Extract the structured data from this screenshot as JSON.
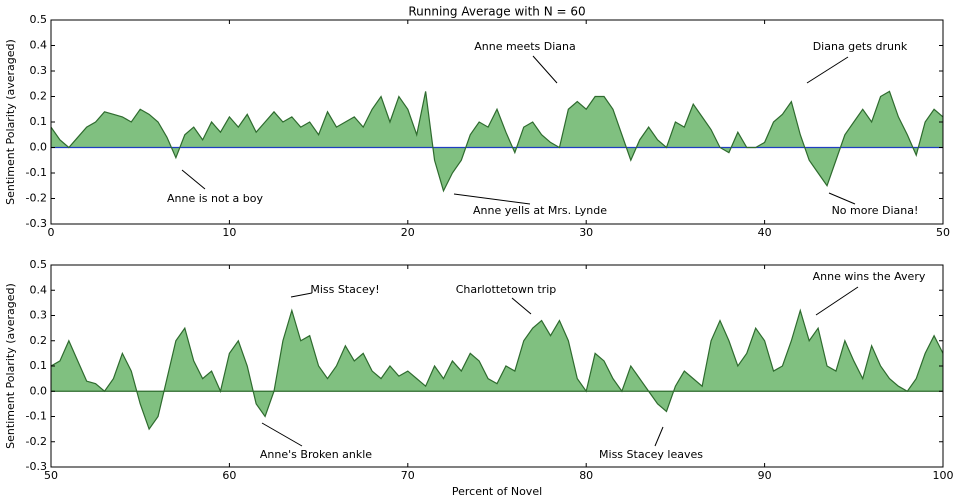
{
  "chart_data": [
    {
      "type": "area",
      "title": "Running Average with N = 60",
      "ylabel": "Sentiment Polarity (averaged)",
      "x": [
        0,
        0.5,
        1,
        1.5,
        2,
        2.5,
        3,
        3.5,
        4,
        4.5,
        5,
        5.5,
        6,
        6.5,
        7,
        7.5,
        8,
        8.5,
        9,
        9.5,
        10,
        10.5,
        11,
        11.5,
        12,
        12.5,
        13,
        13.5,
        14,
        14.5,
        15,
        15.5,
        16,
        16.5,
        17,
        17.5,
        18,
        18.5,
        19,
        19.5,
        20,
        20.5,
        21,
        21.5,
        22,
        22.5,
        23,
        23.5,
        24,
        24.5,
        25,
        25.5,
        26,
        26.5,
        27,
        27.5,
        28,
        28.5,
        29,
        29.5,
        30,
        30.5,
        31,
        31.5,
        32,
        32.5,
        33,
        33.5,
        34,
        34.5,
        35,
        35.5,
        36,
        36.5,
        37,
        37.5,
        38,
        38.5,
        39,
        39.5,
        40,
        40.5,
        41,
        41.5,
        42,
        42.5,
        43,
        43.5,
        44,
        44.5,
        45,
        45.5,
        46,
        46.5,
        47,
        47.5,
        48,
        48.5,
        49,
        49.5,
        50
      ],
      "series": [
        {
          "color": "#2e6b2e",
          "fill": "#80c080",
          "values": [
            0.08,
            0.03,
            0.0,
            0.04,
            0.08,
            0.1,
            0.14,
            0.13,
            0.12,
            0.1,
            0.15,
            0.13,
            0.1,
            0.04,
            -0.04,
            0.05,
            0.08,
            0.03,
            0.1,
            0.06,
            0.12,
            0.08,
            0.13,
            0.06,
            0.1,
            0.14,
            0.1,
            0.12,
            0.08,
            0.1,
            0.05,
            0.14,
            0.08,
            0.1,
            0.12,
            0.08,
            0.15,
            0.2,
            0.1,
            0.2,
            0.15,
            0.05,
            0.22,
            -0.05,
            -0.17,
            -0.1,
            -0.05,
            0.05,
            0.1,
            0.08,
            0.15,
            0.06,
            -0.02,
            0.08,
            0.1,
            0.05,
            0.02,
            0.0,
            0.15,
            0.18,
            0.15,
            0.2,
            0.2,
            0.15,
            0.05,
            -0.05,
            0.03,
            0.08,
            0.03,
            0.0,
            0.1,
            0.08,
            0.17,
            0.12,
            0.07,
            0.0,
            -0.02,
            0.06,
            0.0,
            0.0,
            0.02,
            0.1,
            0.13,
            0.18,
            0.05,
            -0.05,
            -0.1,
            -0.15,
            -0.05,
            0.05,
            0.1,
            0.15,
            0.1,
            0.2,
            0.22,
            0.12,
            0.05,
            -0.03,
            0.1,
            0.15,
            0.12
          ]
        }
      ],
      "zero_line_color": "#1f3fbf",
      "xlim": [
        0,
        50
      ],
      "ylim": [
        -0.3,
        0.5
      ],
      "xticks": [
        0,
        10,
        20,
        30,
        40,
        50
      ],
      "yticks": [
        -0.3,
        -0.2,
        -0.1,
        {
          "value": 0,
          "label": "0.0"
        },
        0.1,
        0.2,
        0.3,
        0.4,
        0.5
      ],
      "annotations": [
        "Anne is not a boy",
        "Anne meets Diana",
        "Anne yells at Mrs. Lynde",
        "Diana gets drunk",
        "No more Diana!"
      ]
    },
    {
      "type": "area",
      "ylabel": "Sentiment Polarity (averaged)",
      "xlabel": "Percent of Novel",
      "x": [
        50,
        50.5,
        51,
        51.5,
        52,
        52.5,
        53,
        53.5,
        54,
        54.5,
        55,
        55.5,
        56,
        56.5,
        57,
        57.5,
        58,
        58.5,
        59,
        59.5,
        60,
        60.5,
        61,
        61.5,
        62,
        62.5,
        63,
        63.5,
        64,
        64.5,
        65,
        65.5,
        66,
        66.5,
        67,
        67.5,
        68,
        68.5,
        69,
        69.5,
        70,
        70.5,
        71,
        71.5,
        72,
        72.5,
        73,
        73.5,
        74,
        74.5,
        75,
        75.5,
        76,
        76.5,
        77,
        77.5,
        78,
        78.5,
        79,
        79.5,
        80,
        80.5,
        81,
        81.5,
        82,
        82.5,
        83,
        83.5,
        84,
        84.5,
        85,
        85.5,
        86,
        86.5,
        87,
        87.5,
        88,
        88.5,
        89,
        89.5,
        90,
        90.5,
        91,
        91.5,
        92,
        92.5,
        93,
        93.5,
        94,
        94.5,
        95,
        95.5,
        96,
        96.5,
        97,
        97.5,
        98,
        98.5,
        99,
        99.5,
        100
      ],
      "series": [
        {
          "color": "#2e6b2e",
          "fill": "#80c080",
          "values": [
            0.1,
            0.12,
            0.2,
            0.12,
            0.04,
            0.03,
            0.0,
            0.05,
            0.15,
            0.08,
            -0.05,
            -0.15,
            -0.1,
            0.05,
            0.2,
            0.25,
            0.12,
            0.05,
            0.08,
            0.0,
            0.15,
            0.2,
            0.1,
            -0.05,
            -0.1,
            0.0,
            0.2,
            0.32,
            0.2,
            0.22,
            0.1,
            0.05,
            0.1,
            0.18,
            0.12,
            0.15,
            0.08,
            0.05,
            0.1,
            0.06,
            0.08,
            0.05,
            0.02,
            0.1,
            0.05,
            0.12,
            0.08,
            0.15,
            0.12,
            0.05,
            0.03,
            0.1,
            0.08,
            0.2,
            0.25,
            0.28,
            0.22,
            0.28,
            0.2,
            0.05,
            0.0,
            0.15,
            0.12,
            0.05,
            0.0,
            0.1,
            0.05,
            0.0,
            -0.05,
            -0.08,
            0.02,
            0.08,
            0.05,
            0.02,
            0.2,
            0.28,
            0.2,
            0.1,
            0.15,
            0.25,
            0.2,
            0.08,
            0.1,
            0.2,
            0.32,
            0.2,
            0.25,
            0.1,
            0.08,
            0.2,
            0.12,
            0.05,
            0.18,
            0.1,
            0.05,
            0.02,
            0.0,
            0.05,
            0.15,
            0.22,
            0.15
          ]
        }
      ],
      "zero_line_color": "#2e6b2e",
      "xlim": [
        50,
        100
      ],
      "ylim": [
        -0.3,
        0.5
      ],
      "xticks": [
        50,
        60,
        70,
        80,
        90,
        100
      ],
      "yticks": [
        -0.3,
        -0.2,
        -0.1,
        {
          "value": 0,
          "label": "0.0"
        },
        0.1,
        0.2,
        0.3,
        0.4,
        0.5
      ],
      "annotations": [
        "Miss Stacey!",
        "Charlottetown trip",
        "Anne wins the Avery",
        "Anne's Broken ankle",
        "Miss Stacey leaves"
      ]
    }
  ]
}
